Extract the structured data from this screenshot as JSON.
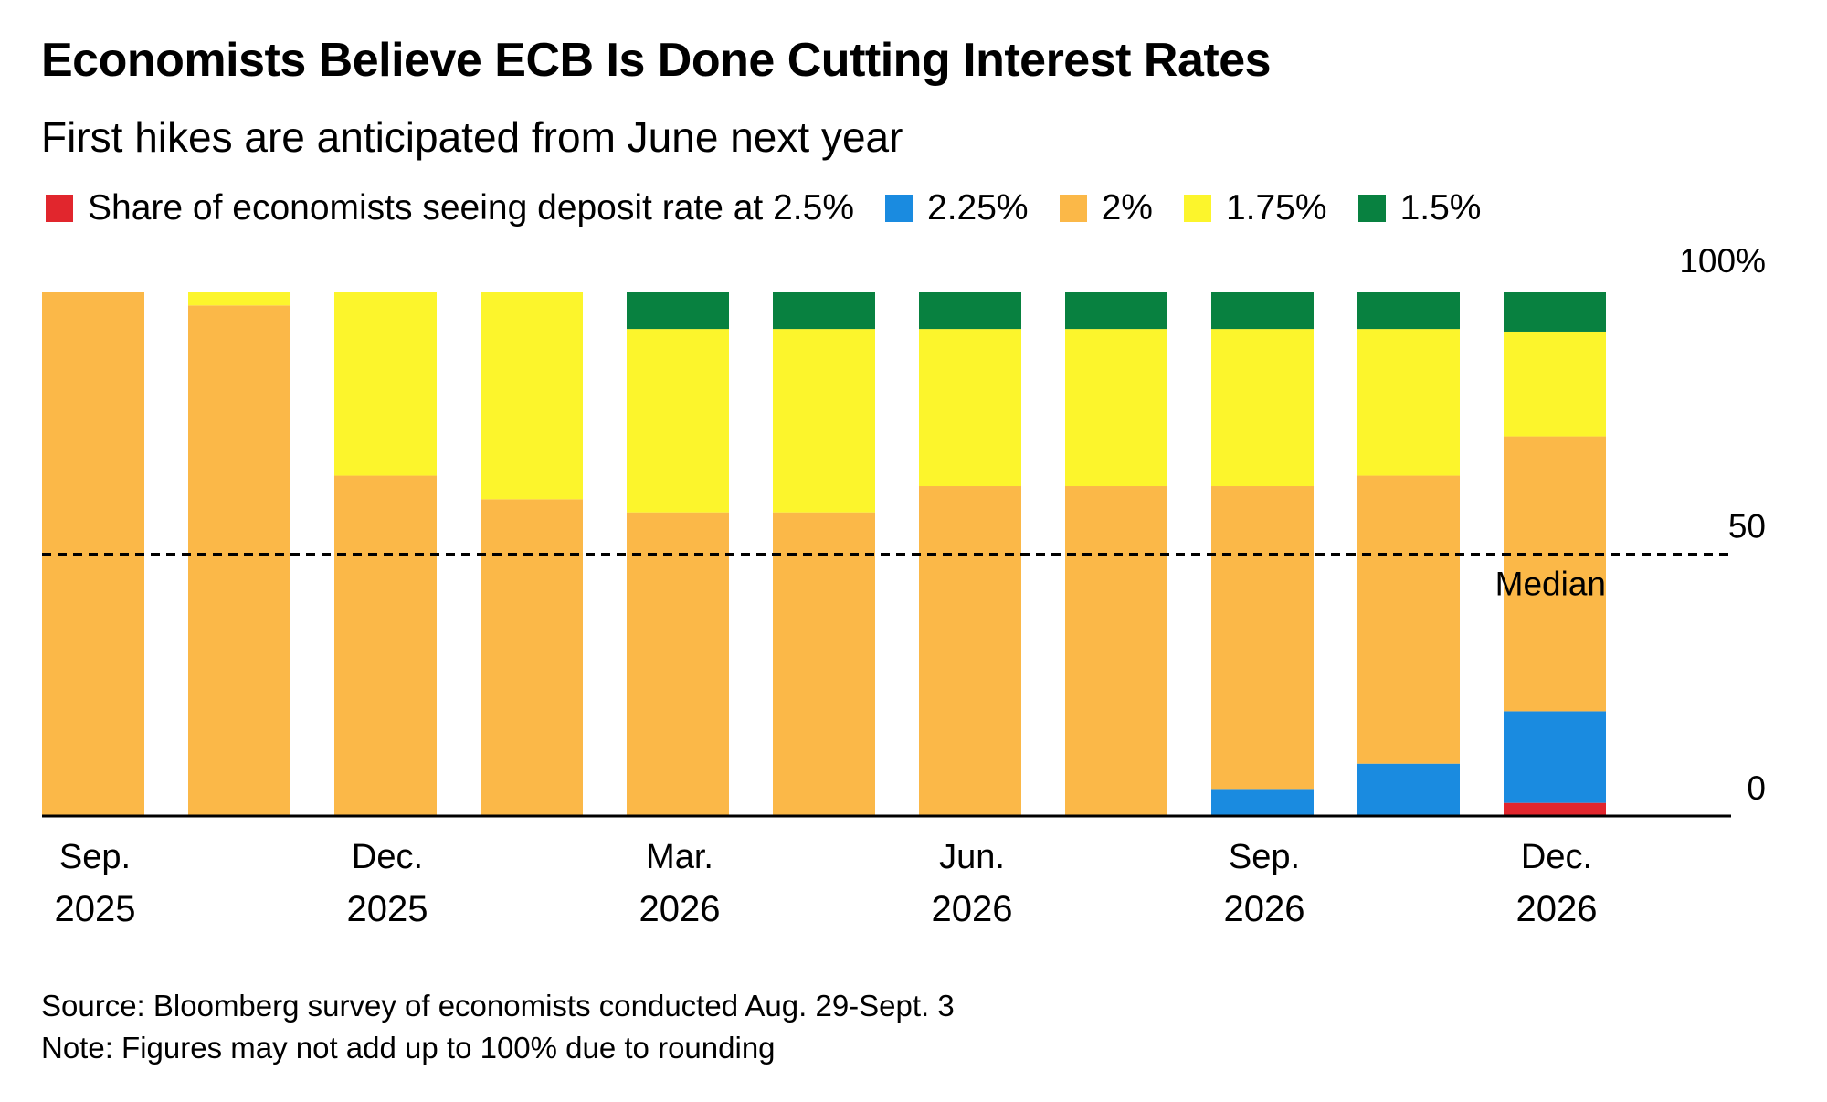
{
  "title": "Economists Believe ECB Is Done Cutting Interest Rates",
  "subtitle": "First hikes are anticipated from June next year",
  "legend": [
    {
      "label": "Share of economists seeing deposit rate at 2.5%",
      "color": "#e1262d"
    },
    {
      "label": "2.25%",
      "color": "#1a8be0"
    },
    {
      "label": "2%",
      "color": "#fbb848"
    },
    {
      "label": "1.75%",
      "color": "#fcf52c"
    },
    {
      "label": "1.5%",
      "color": "#088140"
    }
  ],
  "median_label": "Median",
  "source": "Source: Bloomberg survey of economists conducted Aug. 29-Sept. 3",
  "note": "Note: Figures may not add up to 100% due to rounding",
  "chart_data": {
    "type": "bar",
    "stacked": true,
    "categories": [
      "Sep. 2025",
      "",
      "Dec. 2025",
      "",
      "Mar. 2026",
      "",
      "Jun. 2026",
      "",
      "Sep. 2026",
      "",
      "Dec. 2026"
    ],
    "x_tick_labels": [
      {
        "index": 0,
        "line1": "Sep.",
        "line2": "2025"
      },
      {
        "index": 2,
        "line1": "Dec.",
        "line2": "2025"
      },
      {
        "index": 4,
        "line1": "Mar.",
        "line2": "2026"
      },
      {
        "index": 6,
        "line1": "Jun.",
        "line2": "2026"
      },
      {
        "index": 8,
        "line1": "Sep.",
        "line2": "2026"
      },
      {
        "index": 10,
        "line1": "Dec.",
        "line2": "2026"
      }
    ],
    "series": [
      {
        "name": "2.5%",
        "color": "#e1262d",
        "values": [
          0,
          0,
          0,
          0,
          0,
          0,
          0,
          0,
          0,
          0,
          2.5
        ]
      },
      {
        "name": "2.25%",
        "color": "#1a8be0",
        "values": [
          0,
          0,
          0,
          0,
          0,
          0,
          0,
          0,
          5,
          10,
          17.5
        ]
      },
      {
        "name": "2%",
        "color": "#fbb848",
        "values": [
          100,
          97.5,
          65,
          60.5,
          58,
          58,
          63,
          63,
          58,
          55,
          52.5
        ]
      },
      {
        "name": "1.75%",
        "color": "#fcf52c",
        "values": [
          0,
          2.5,
          35,
          39.5,
          35,
          35,
          30,
          30,
          30,
          28,
          20
        ]
      },
      {
        "name": "1.5%",
        "color": "#088140",
        "values": [
          0,
          0,
          0,
          0,
          7,
          7,
          7,
          7,
          7,
          7,
          7.5
        ]
      }
    ],
    "y_ticks": [
      "100%",
      "50",
      "0"
    ],
    "y_tick_values": [
      100,
      50,
      0
    ],
    "ylim": [
      0,
      100
    ],
    "median_value": 50,
    "y_axis_side": "right"
  }
}
